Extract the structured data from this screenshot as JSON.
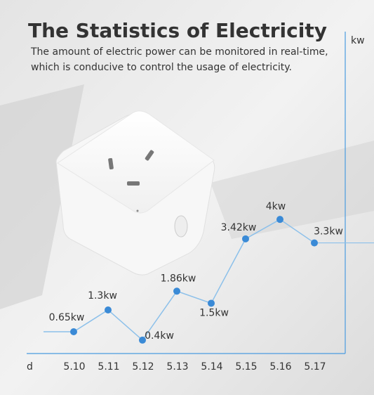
{
  "chart_data": {
    "type": "line",
    "title": "The Statistics of Electricity",
    "subtitle": [
      "The amount of electric power can be monitored in real-time,",
      "which is conducive to control the usage of electricity."
    ],
    "x_label": "d",
    "y_label": "kw",
    "categories": [
      "5.10",
      "5.11",
      "5.12",
      "5.13",
      "5.14",
      "5.15",
      "5.16",
      "5.17"
    ],
    "values": [
      0.65,
      1.3,
      0.4,
      1.86,
      1.5,
      3.42,
      4,
      3.3
    ],
    "value_labels": [
      "0.65kw",
      "1.3kw",
      "0.4kw",
      "1.86kw",
      "1.5kw",
      "3.42kw",
      "4kw",
      "3.3kw"
    ],
    "color": "#3a8ad6",
    "ylim": [
      0,
      9.6
    ]
  }
}
